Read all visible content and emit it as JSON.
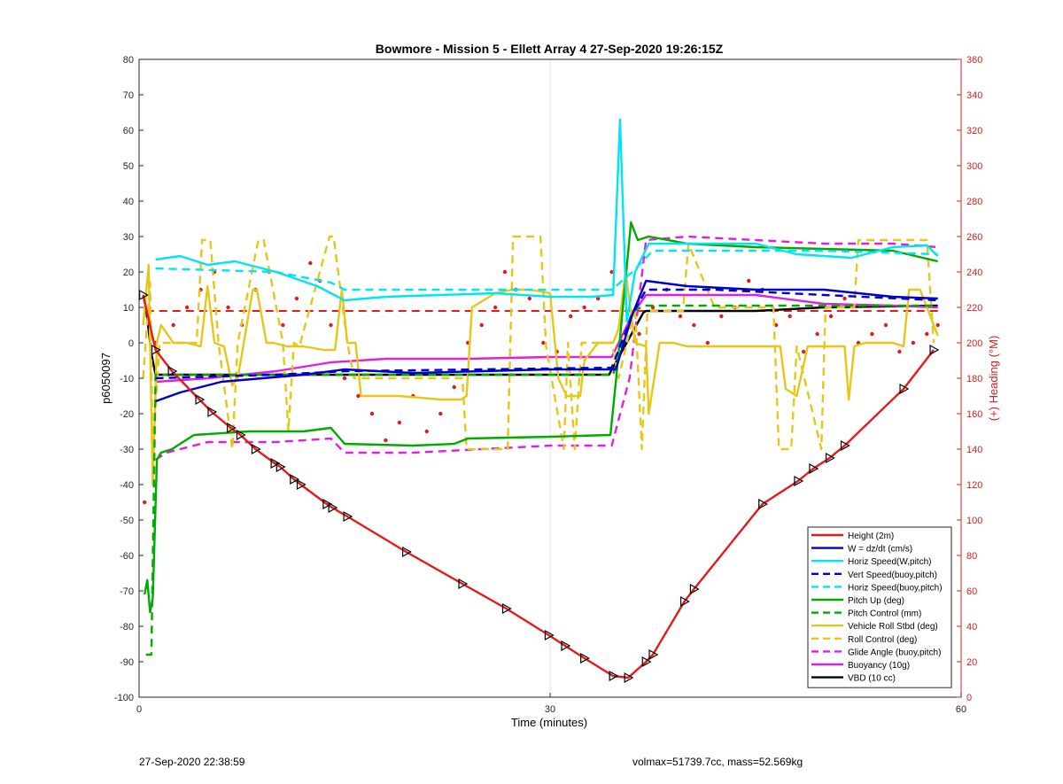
{
  "chart_data": {
    "type": "line",
    "title": "Bowmore - Mission 5 - Ellett Array 4 27-Sep-2020 19:26:15Z",
    "xlabel": "Time (minutes)",
    "ylabel": "p6050097",
    "y2label": "(+) Heading (°M)",
    "xlim": [
      0,
      60
    ],
    "ylim": [
      -100,
      80
    ],
    "y2lim": [
      0,
      360
    ],
    "xticks": [
      0,
      30,
      60
    ],
    "yticks": [
      -100,
      -90,
      -80,
      -70,
      -60,
      -50,
      -40,
      -30,
      -20,
      -10,
      0,
      10,
      20,
      30,
      40,
      50,
      60,
      70,
      80
    ],
    "y2ticks": [
      0,
      20,
      40,
      60,
      80,
      100,
      120,
      140,
      160,
      180,
      200,
      220,
      240,
      260,
      280,
      300,
      320,
      340,
      360
    ],
    "grid": "x-only",
    "legend_position": "bottom-right",
    "series": [
      {
        "name": "Height (2m)",
        "color": "#e41a1c",
        "style": "solid",
        "markers": "triangle",
        "x": [
          0.3,
          1.2,
          2.4,
          4.4,
          5.3,
          6.7,
          7.4,
          8.5,
          9.9,
          10.3,
          11.3,
          11.8,
          13.7,
          14.1,
          15.2,
          19.5,
          23.6,
          26.8,
          29.9,
          31.1,
          32.5,
          34.6,
          35.7,
          37.0,
          37.5,
          39.8,
          40.5,
          45.5,
          48.1,
          49.2,
          50.4,
          51.5,
          55.8,
          58.0
        ],
        "y": [
          13.5,
          -2,
          -8,
          -16,
          -19.5,
          -24,
          -26,
          -30,
          -34,
          -35,
          -38.5,
          -40,
          -45.5,
          -46.5,
          -49,
          -59,
          -68,
          -75,
          -82.5,
          -85.5,
          -89,
          -94,
          -94.5,
          -90,
          -88,
          -73,
          -69.5,
          -45.5,
          -39,
          -35.5,
          -32.5,
          -29,
          -13,
          -2
        ]
      },
      {
        "name": "W = dz/dt (cm/s)",
        "color": "#0000cc",
        "style": "solid",
        "x": [
          1.2,
          3,
          6,
          9,
          12,
          15,
          20,
          25,
          30,
          34.8,
          36,
          37,
          40,
          45,
          50,
          55,
          58.3
        ],
        "y": [
          -16.5,
          -14,
          -11,
          -10,
          -9,
          -7.5,
          -8.5,
          -8,
          -7.5,
          -7.5,
          8,
          17.5,
          16,
          15,
          15,
          13,
          12.5
        ]
      },
      {
        "name": "Horiz Speed(W,pitch)",
        "color": "#00e5ee",
        "style": "solid",
        "x": [
          1.2,
          3,
          5,
          7,
          10,
          13,
          15,
          18,
          22,
          26,
          30,
          33,
          34.6,
          35.1,
          35.6,
          36.2,
          37.2,
          40,
          45,
          48,
          52,
          55,
          57.5,
          58.3
        ],
        "y": [
          23.5,
          24.5,
          22,
          23,
          20,
          16,
          12,
          13,
          13.5,
          14,
          13,
          13,
          13.5,
          63,
          6,
          20,
          28,
          28,
          28,
          25,
          24,
          27,
          27.5,
          24.5
        ]
      },
      {
        "name": "Vert Speed(buoy,pitch)",
        "color": "#0000cc",
        "style": "dashed",
        "x": [
          1.2,
          10,
          15,
          34.5,
          36,
          37,
          42,
          50,
          58.3
        ],
        "y": [
          -10,
          -9,
          -8,
          -7,
          8,
          15,
          15,
          13.5,
          12
        ]
      },
      {
        "name": "Horiz Speed(buoy,pitch)",
        "color": "#00e5ee",
        "style": "dashed",
        "x": [
          1.2,
          10,
          14,
          15,
          34.5,
          36,
          37.5,
          45,
          50,
          58.3
        ],
        "y": [
          21,
          20,
          17,
          15,
          15,
          20,
          26,
          26,
          26,
          25
        ]
      },
      {
        "name": "Pitch Up (deg)",
        "color": "#00aa00",
        "style": "solid",
        "x": [
          0.4,
          0.6,
          0.8,
          1.0,
          1.3,
          1.6,
          2.4,
          4,
          8,
          12,
          14,
          15,
          20,
          23,
          24,
          30,
          34.4,
          34.8,
          35.9,
          36.4,
          37.2,
          40,
          45,
          50,
          55,
          58.3
        ],
        "y": [
          -71,
          -67,
          -76,
          -72,
          -33,
          -31,
          -30,
          -26,
          -25,
          -25,
          -24,
          -28.5,
          -29,
          -28.5,
          -27,
          -26.5,
          -26,
          -11,
          34,
          29,
          30,
          28,
          27,
          26.5,
          26,
          23
        ]
      },
      {
        "name": "Pitch Control (mm)",
        "color": "#00aa00",
        "style": "dashed",
        "x": [
          0.5,
          0.9,
          1.2,
          34.6,
          36,
          37,
          58.3
        ],
        "y": [
          -88,
          -88,
          -9,
          -9,
          9,
          10.5,
          10.5
        ]
      },
      {
        "name": "Vehicle Roll Stbd (deg)",
        "color": "#e6c619",
        "style": "solid",
        "x": [
          0.3,
          0.7,
          1.0,
          1.3,
          1.6,
          2.5,
          3.5,
          4.5,
          5.0,
          5.5,
          6.2,
          6.8,
          7.2,
          8.3,
          8.6,
          9.3,
          9.8,
          10.8,
          12,
          13.5,
          14.3,
          14.8,
          15.2,
          15.8,
          16.2,
          19,
          22,
          23.5,
          23.9,
          24.3,
          26,
          27.2,
          28.5,
          30,
          30.6,
          31.2,
          32.2,
          32.5,
          33.5,
          34.6,
          35,
          35.5,
          36.2,
          37,
          37.2,
          38,
          39,
          40,
          42,
          45,
          46.8,
          47.2,
          48,
          48.8,
          50,
          51.5,
          51.8,
          52.2,
          53,
          55,
          55.8,
          56.2,
          57,
          58.3
        ],
        "y": [
          5,
          22,
          -40,
          0,
          5,
          0,
          0,
          -1,
          16,
          0,
          -1,
          -12,
          -10,
          15,
          15,
          0,
          0,
          -1,
          -1,
          -2,
          -2,
          15,
          0,
          0,
          -15,
          -15,
          -16,
          -16,
          -15,
          10,
          14,
          15,
          15,
          14,
          -10,
          -15,
          -15,
          -5,
          0,
          0,
          4,
          20,
          0,
          -1,
          -20,
          0,
          0,
          -1,
          -1,
          -1,
          -1,
          -13,
          -15,
          -1,
          -1,
          -1,
          -16,
          -1,
          0,
          0,
          -1,
          15,
          15,
          2
        ]
      },
      {
        "name": "Roll Control (deg)",
        "color": "#e6c619",
        "style": "dashed",
        "x": [
          0.3,
          0.8,
          1.0,
          1.5,
          4.2,
          4.6,
          5.2,
          5.8,
          6.8,
          7.2,
          8.7,
          9.1,
          10.5,
          10.9,
          11.3,
          11.7,
          13.9,
          14.2,
          15.2,
          15.7,
          20,
          23.6,
          23.9,
          26.9,
          27.3,
          29.3,
          29.7,
          31,
          31.3,
          31.8,
          32.3,
          34.5,
          35,
          36.2,
          36.7,
          37.1,
          39.7,
          40.1,
          42,
          46.3,
          46.7,
          47.6,
          48,
          49.8,
          50.1,
          52.2,
          52.5,
          56.3,
          56.7,
          57.5,
          58
        ],
        "y": [
          -10,
          17,
          -30,
          0,
          0,
          29,
          29,
          0,
          -30,
          0,
          29,
          29,
          0,
          -25,
          0,
          -1,
          30,
          30,
          0,
          -10,
          -10,
          -10,
          -30,
          -30,
          30,
          30,
          -1,
          -30,
          0,
          -30,
          0,
          0,
          -10,
          10,
          -30,
          9,
          9,
          28,
          10,
          10,
          -30,
          -30,
          -1,
          -30,
          10,
          10,
          29,
          29,
          29,
          29,
          0
        ]
      },
      {
        "name": "Glide Angle (buoy,pitch)",
        "color": "#e020e0",
        "style": "dashed",
        "x": [
          1.2,
          2,
          5,
          10,
          14,
          15,
          20,
          25,
          30,
          34.5,
          35.8,
          37,
          40,
          45,
          50,
          55,
          58.3
        ],
        "y": [
          -33,
          -31,
          -28,
          -28,
          -27,
          -31,
          -31,
          -30,
          -29,
          -29,
          -10,
          29,
          30,
          29,
          28,
          28,
          27
        ]
      },
      {
        "name": "Buoyancy (10g)",
        "color": "#e020e0",
        "style": "solid",
        "x": [
          1.2,
          5,
          10,
          14,
          18,
          24,
          30,
          34.5,
          36,
          37,
          40,
          45,
          50,
          55,
          58.3
        ],
        "y": [
          -11,
          -10,
          -8,
          -5.5,
          -4.5,
          -4.5,
          -4,
          -4,
          8,
          13.5,
          13.5,
          13.5,
          11,
          10.5,
          10
        ]
      },
      {
        "name": "VBD (10 cc)",
        "color": "#000000",
        "style": "solid",
        "x": [
          0.3,
          0.5,
          0.9,
          1.2,
          10,
          20,
          34.3,
          36.8,
          37,
          45,
          50,
          58.3
        ],
        "y": [
          13.5,
          10,
          -3,
          -9,
          -9,
          -9,
          -9,
          8.5,
          9,
          9,
          10,
          10.5
        ]
      }
    ],
    "heading_series": {
      "color": "#e41a1c",
      "style": "dotted",
      "axis": "right",
      "x": [
        0.4,
        1.2,
        2.5,
        3.5,
        4.5,
        5.5,
        6.5,
        7.5,
        8.5,
        9.5,
        10.5,
        11.5,
        12.5,
        13.2,
        14,
        15,
        16,
        17,
        18,
        19,
        20,
        21,
        22,
        23,
        24,
        25,
        26,
        26.7,
        27.5,
        28.5,
        29.5,
        30.5,
        31.5,
        32.5,
        33.5,
        34.5,
        35.5,
        36.5,
        37.5,
        38.5,
        39.5,
        40.5,
        41.5,
        42.5,
        43.5,
        44.5,
        45.5,
        46.5,
        47.5,
        48.5,
        49.5,
        50.5,
        51.5,
        52.5,
        53.5,
        54.5,
        55.5,
        56.5,
        57.5,
        58.3
      ],
      "y": [
        110,
        200,
        210,
        220,
        230,
        240,
        220,
        210,
        230,
        240,
        210,
        225,
        245,
        235,
        210,
        180,
        170,
        160,
        145,
        155,
        170,
        150,
        160,
        175,
        200,
        210,
        220,
        240,
        230,
        225,
        200,
        195,
        215,
        220,
        225,
        240,
        200,
        205,
        220,
        230,
        215,
        210,
        200,
        215,
        220,
        235,
        230,
        210,
        215,
        195,
        205,
        215,
        225,
        200,
        205,
        210,
        195,
        200,
        205,
        210
      ]
    },
    "heading_ref": {
      "value": 218,
      "color": "#e41a1c",
      "style": "dashed"
    }
  },
  "footer": {
    "left": "27-Sep-2020 22:38:59",
    "right": "volmax=51739.7cc, mass=52.569kg"
  }
}
